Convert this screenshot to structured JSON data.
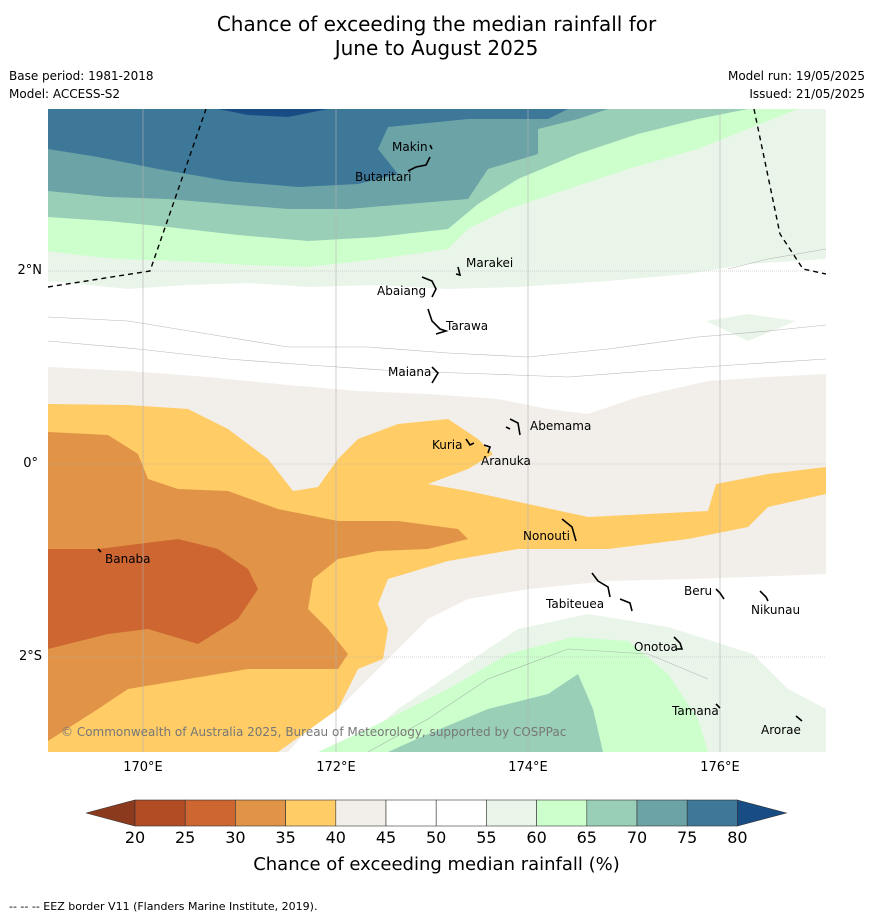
{
  "title": {
    "line1": "Chance of exceeding the median rainfall for",
    "line2": "June to August 2025"
  },
  "meta": {
    "base_period": "Base period: 1981-2018",
    "model": "Model: ACCESS-S2",
    "model_run": "Model run: 19/05/2025",
    "issued": "Issued: 21/05/2025"
  },
  "axes": {
    "lat_labels": [
      "2°N",
      "0°",
      "2°S"
    ],
    "lon_labels": [
      "170°E",
      "172°E",
      "174°E",
      "176°E"
    ]
  },
  "places": [
    {
      "name": "Makin"
    },
    {
      "name": "Butaritari"
    },
    {
      "name": "Marakei"
    },
    {
      "name": "Abaiang"
    },
    {
      "name": "Tarawa"
    },
    {
      "name": "Maiana"
    },
    {
      "name": "Abemama"
    },
    {
      "name": "Kuria"
    },
    {
      "name": "Aranuka"
    },
    {
      "name": "Nonouti"
    },
    {
      "name": "Banaba"
    },
    {
      "name": "Beru"
    },
    {
      "name": "Tabiteuea"
    },
    {
      "name": "Nikunau"
    },
    {
      "name": "Onotoa"
    },
    {
      "name": "Tamana"
    },
    {
      "name": "Arorae"
    }
  ],
  "copyright": "© Commonwealth of Australia 2025, Bureau of Meteorology, supported by COSPPac",
  "colorbar": {
    "ticks": [
      "20",
      "25",
      "30",
      "35",
      "40",
      "45",
      "50",
      "55",
      "60",
      "65",
      "70",
      "75",
      "80"
    ],
    "label": "Chance of exceeding median rainfall (%)",
    "colors": [
      "#8b3a1e",
      "#b24c25",
      "#cd6631",
      "#e19447",
      "#ffcc66",
      "#f2eee9",
      "#ffffff",
      "#ffffff",
      "#eaf5ea",
      "#ccffcc",
      "#99cfb7",
      "#6ba3a6",
      "#3e7899",
      "#184c85"
    ]
  },
  "footer": "--  --  -- EEZ border V11 (Flanders Marine Institute, 2019)."
}
